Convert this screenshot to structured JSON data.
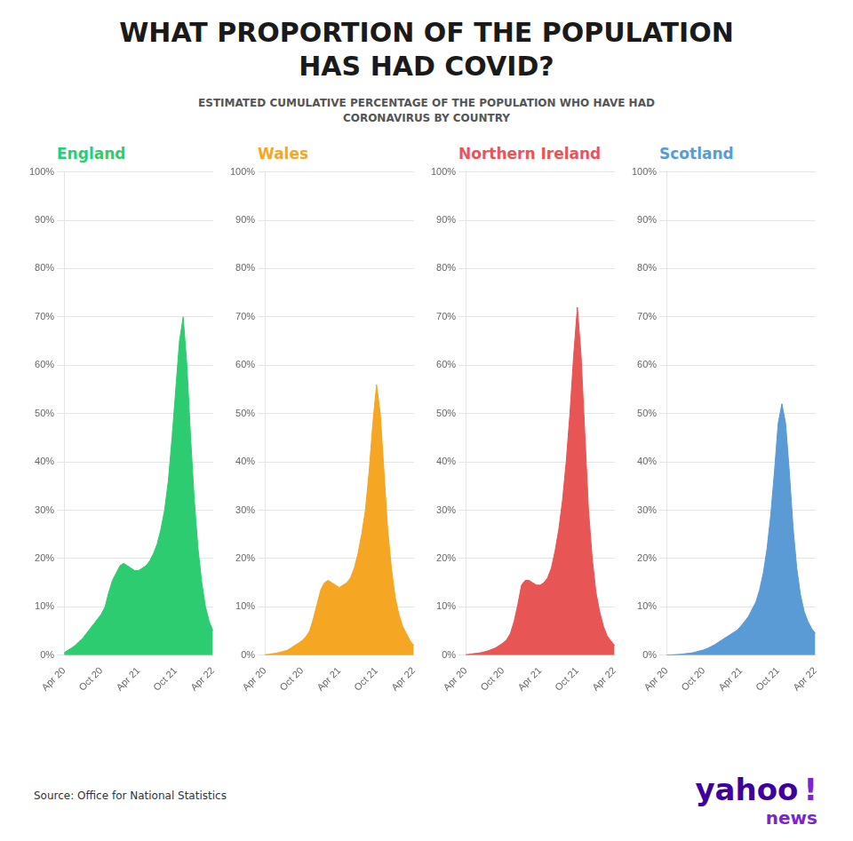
{
  "title": [
    "WHAT PROPORTION OF THE POPULATION",
    "HAS HAD COVID?"
  ],
  "subtitle": [
    "ESTIMATED CUMULATIVE PERCENTAGE OF THE POPULATION WHO HAVE HAD",
    "CORONAVIRUS BY COUNTRY"
  ],
  "annotations": [
    "Source: Office for National Statistics",
    "yahoo",
    "!",
    "news"
  ],
  "chart_data": [
    {
      "type": "area",
      "title": "England",
      "color": "#2ecc71",
      "categories": [
        "Apr 20",
        null,
        null,
        null,
        null,
        null,
        null,
        null,
        null,
        null,
        "Oct 20",
        null,
        null,
        null,
        null,
        null,
        null,
        null,
        null,
        null,
        "Apr 21",
        null,
        null,
        null,
        null,
        null,
        null,
        null,
        null,
        null,
        "Oct 21",
        null,
        null,
        null,
        null,
        null,
        null,
        null,
        null,
        null,
        "Apr 22"
      ],
      "values": [
        0.5,
        1.0,
        1.5,
        2.0,
        2.8,
        3.5,
        4.5,
        5.5,
        6.5,
        7.5,
        8.5,
        10.0,
        13.0,
        15.5,
        17.0,
        18.5,
        19.0,
        18.5,
        18.0,
        17.5,
        17.5,
        18.0,
        18.5,
        19.5,
        21.0,
        23.0,
        26.0,
        30.0,
        36.0,
        45.0,
        55.0,
        65.0,
        70.0,
        60.0,
        45.0,
        32.0,
        22.0,
        15.0,
        10.0,
        7.0,
        5.0
      ],
      "ylim": [
        0,
        100
      ],
      "yticks": [
        {
          "value": 0,
          "label": "0%"
        },
        {
          "value": 10,
          "label": "10%"
        },
        {
          "value": 20,
          "label": "20%"
        },
        {
          "value": 30,
          "label": "30%"
        },
        {
          "value": 40,
          "label": "40%"
        },
        {
          "value": 50,
          "label": "50%"
        },
        {
          "value": 60,
          "label": "60%"
        },
        {
          "value": 70,
          "label": "70%"
        },
        {
          "value": 80,
          "label": "80%"
        },
        {
          "value": 90,
          "label": "90%"
        },
        {
          "value": 100,
          "label": "100%"
        }
      ],
      "grid": true
    },
    {
      "type": "area",
      "title": "Wales",
      "color": "#f5a623",
      "categories": [
        "Apr 20",
        null,
        null,
        null,
        null,
        null,
        null,
        null,
        null,
        null,
        "Oct 20",
        null,
        null,
        null,
        null,
        null,
        null,
        null,
        null,
        null,
        "Apr 21",
        null,
        null,
        null,
        null,
        null,
        null,
        null,
        null,
        null,
        "Oct 21",
        null,
        null,
        null,
        null,
        null,
        null,
        null,
        null,
        null,
        "Apr 22"
      ],
      "values": [
        0.1,
        0.2,
        0.3,
        0.4,
        0.6,
        0.8,
        1.0,
        1.5,
        2.0,
        2.5,
        3.0,
        3.8,
        5.0,
        7.5,
        10.5,
        13.5,
        15.0,
        15.5,
        15.0,
        14.5,
        14.0,
        14.5,
        15.0,
        16.0,
        18.0,
        21.0,
        25.0,
        30.0,
        38.0,
        48.0,
        56.0,
        50.0,
        38.0,
        26.0,
        18.0,
        12.0,
        8.5,
        6.0,
        4.5,
        3.0,
        2.0
      ],
      "ylim": [
        0,
        100
      ],
      "yticks": [
        {
          "value": 0,
          "label": "0%"
        },
        {
          "value": 10,
          "label": "10%"
        },
        {
          "value": 20,
          "label": "20%"
        },
        {
          "value": 30,
          "label": "30%"
        },
        {
          "value": 40,
          "label": "40%"
        },
        {
          "value": 50,
          "label": "50%"
        },
        {
          "value": 60,
          "label": "60%"
        },
        {
          "value": 70,
          "label": "70%"
        },
        {
          "value": 80,
          "label": "80%"
        },
        {
          "value": 90,
          "label": "90%"
        },
        {
          "value": 100,
          "label": "100%"
        }
      ],
      "grid": true
    },
    {
      "type": "area",
      "title": "Northern Ireland",
      "color": "#e85555",
      "categories": [
        "Apr 20",
        null,
        null,
        null,
        null,
        null,
        null,
        null,
        null,
        null,
        "Oct 20",
        null,
        null,
        null,
        null,
        null,
        null,
        null,
        null,
        null,
        "Apr 21",
        null,
        null,
        null,
        null,
        null,
        null,
        null,
        null,
        null,
        "Oct 21",
        null,
        null,
        null,
        null,
        null,
        null,
        null,
        null,
        null,
        "Apr 22"
      ],
      "values": [
        0.1,
        0.2,
        0.3,
        0.4,
        0.5,
        0.7,
        0.9,
        1.2,
        1.5,
        2.0,
        2.5,
        3.2,
        4.5,
        7.0,
        10.5,
        14.5,
        15.5,
        15.5,
        15.0,
        14.5,
        14.5,
        15.0,
        16.0,
        18.0,
        21.5,
        26.0,
        32.0,
        40.0,
        50.0,
        62.0,
        72.0,
        62.0,
        46.0,
        30.0,
        20.0,
        13.0,
        9.0,
        6.0,
        4.0,
        3.0,
        2.0
      ],
      "ylim": [
        0,
        100
      ],
      "yticks": [
        {
          "value": 0,
          "label": "0%"
        },
        {
          "value": 10,
          "label": "10%"
        },
        {
          "value": 20,
          "label": "20%"
        },
        {
          "value": 30,
          "label": "30%"
        },
        {
          "value": 40,
          "label": "40%"
        },
        {
          "value": 50,
          "label": "50%"
        },
        {
          "value": 60,
          "label": "60%"
        },
        {
          "value": 70,
          "label": "70%"
        },
        {
          "value": 80,
          "label": "80%"
        },
        {
          "value": 90,
          "label": "90%"
        },
        {
          "value": 100,
          "label": "100%"
        }
      ],
      "grid": true
    },
    {
      "type": "area",
      "title": "Scotland",
      "color": "#5b9bd5",
      "categories": [
        "Apr 20",
        null,
        null,
        null,
        null,
        null,
        null,
        null,
        null,
        null,
        "Oct 20",
        null,
        null,
        null,
        null,
        null,
        null,
        null,
        null,
        null,
        "Apr 21",
        null,
        null,
        null,
        null,
        null,
        null,
        null,
        null,
        null,
        "Oct 21",
        null,
        null,
        null,
        null,
        null,
        null,
        null,
        null,
        null,
        "Apr 22"
      ],
      "values": [
        0.0,
        0.05,
        0.1,
        0.15,
        0.2,
        0.3,
        0.4,
        0.5,
        0.7,
        0.9,
        1.1,
        1.4,
        1.8,
        2.2,
        2.7,
        3.2,
        3.7,
        4.2,
        4.7,
        5.2,
        6.0,
        7.0,
        8.0,
        9.5,
        11.0,
        13.5,
        17.0,
        22.0,
        29.0,
        38.0,
        48.0,
        52.0,
        48.0,
        38.0,
        26.5,
        18.0,
        12.5,
        9.0,
        7.0,
        5.5,
        4.5
      ],
      "ylim": [
        0,
        100
      ],
      "yticks": [
        {
          "value": 0,
          "label": "0%"
        },
        {
          "value": 10,
          "label": "10%"
        },
        {
          "value": 20,
          "label": "20%"
        },
        {
          "value": 30,
          "label": "30%"
        },
        {
          "value": 40,
          "label": "40%"
        },
        {
          "value": 50,
          "label": "50%"
        },
        {
          "value": 60,
          "label": "60%"
        },
        {
          "value": 70,
          "label": "70%"
        },
        {
          "value": 80,
          "label": "80%"
        },
        {
          "value": 90,
          "label": "90%"
        },
        {
          "value": 100,
          "label": "100%"
        }
      ],
      "grid": true
    }
  ]
}
